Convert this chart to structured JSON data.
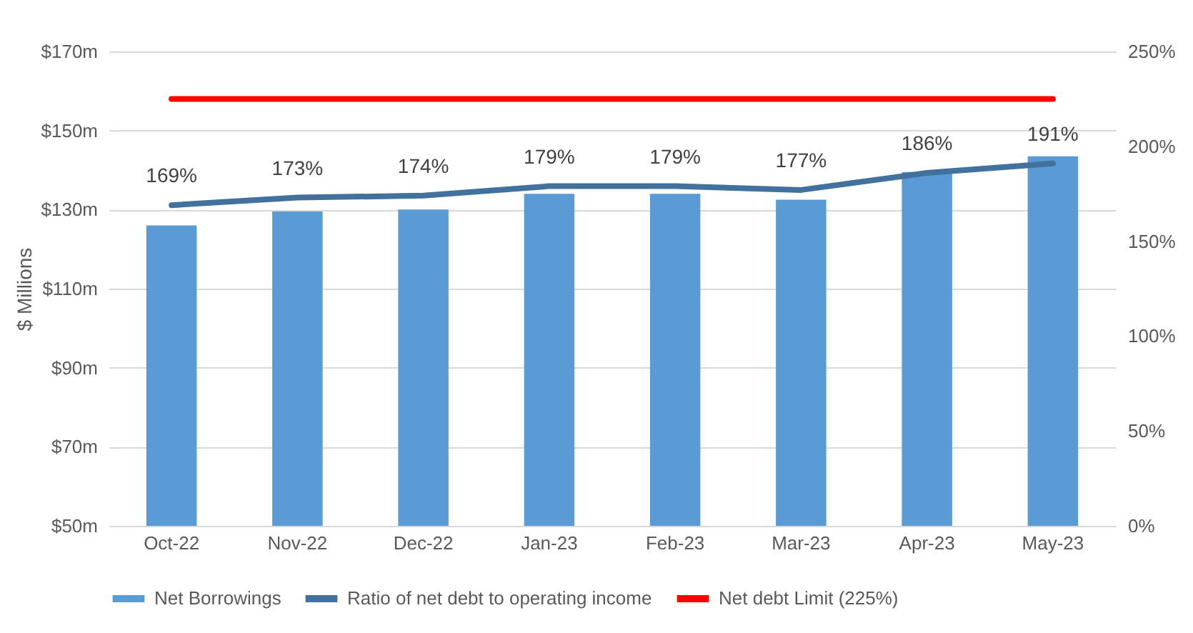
{
  "chart_data": {
    "type": "bar",
    "ylabel": "$ Millions",
    "categories": [
      "Oct-22",
      "Nov-22",
      "Dec-22",
      "Jan-23",
      "Feb-23",
      "Mar-23",
      "Apr-23",
      "May-23"
    ],
    "series": [
      {
        "name": "Net Borrowings",
        "color": "#5b9bd5",
        "values": [
          126,
          129.5,
          130,
          134,
          134,
          132.5,
          139.5,
          143.5
        ]
      },
      {
        "name": "Ratio of net debt to operating income",
        "type": "line",
        "axis": "y2",
        "color": "#41719c",
        "values": [
          169,
          173,
          174,
          179,
          179,
          177,
          186,
          191
        ],
        "value_labels": [
          "169%",
          "173%",
          "174%",
          "179%",
          "179%",
          "177%",
          "186%",
          "191%"
        ]
      },
      {
        "name": "Net debt Limit (225%)",
        "type": "line",
        "axis": "y2",
        "color": "#ff0000",
        "values": [
          225,
          225,
          225,
          225,
          225,
          225,
          225,
          225
        ]
      }
    ],
    "ylim": [
      50,
      170
    ],
    "yticks": [
      {
        "value": 50,
        "label": "$50m"
      },
      {
        "value": 70,
        "label": "$70m"
      },
      {
        "value": 90,
        "label": "$90m"
      },
      {
        "value": 110,
        "label": "$110m"
      },
      {
        "value": 130,
        "label": "$130m"
      },
      {
        "value": 150,
        "label": "$150m"
      },
      {
        "value": 170,
        "label": "$170m"
      }
    ],
    "y2lim": [
      0,
      250
    ],
    "y2ticks": [
      {
        "value": 0,
        "label": "0%"
      },
      {
        "value": 50,
        "label": "50%"
      },
      {
        "value": 100,
        "label": "100%"
      },
      {
        "value": 150,
        "label": "150%"
      },
      {
        "value": 200,
        "label": "200%"
      },
      {
        "value": 250,
        "label": "250%"
      }
    ],
    "grid": "y",
    "legend": "bottom"
  }
}
